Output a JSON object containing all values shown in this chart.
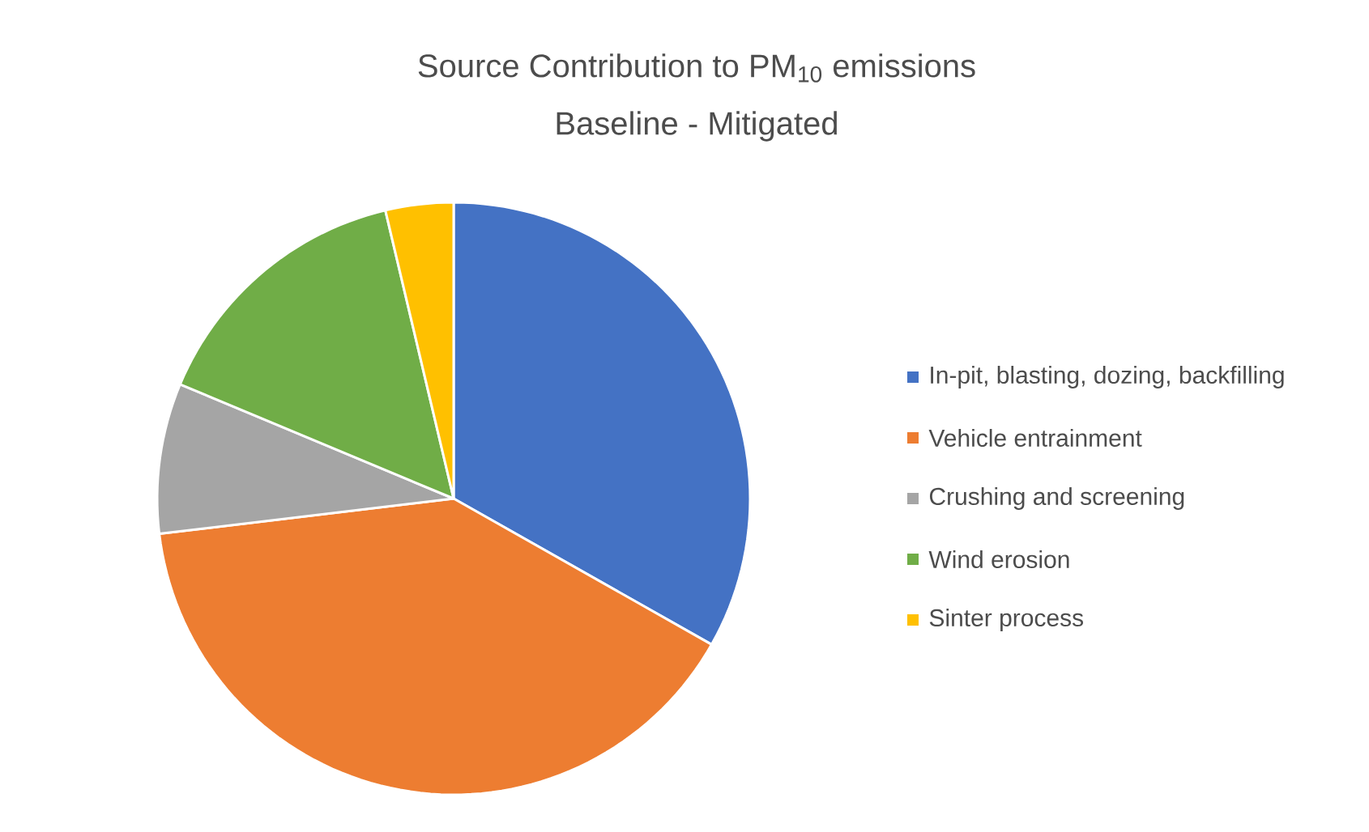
{
  "chart_data": {
    "type": "pie",
    "title": "Source Contribution to PM$_{10}$ emissions",
    "subtitle": "Baseline - Mitigated",
    "categories": [
      "In-pit, blasting, dozing, backfilling",
      "Vehicle entrainment",
      "Crushing and screening",
      "Wind erosion",
      "Sinter process"
    ],
    "values": [
      33.2,
      39.9,
      8.2,
      15.0,
      3.7
    ],
    "colors": [
      "#4472c4",
      "#ed7d31",
      "#a5a5a5",
      "#70ad47",
      "#ffc000"
    ],
    "legend": "right"
  }
}
